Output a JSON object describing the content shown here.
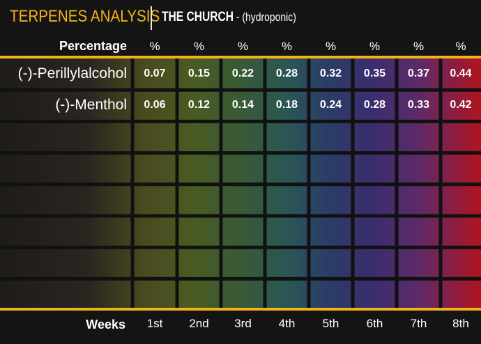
{
  "header": {
    "title": "TERPENES ANALYSIS",
    "subtitle": "THE CHURCH",
    "subtitle_note": " - (hydroponic)"
  },
  "chart_data": {
    "type": "table",
    "row_header": "Percentage",
    "column_header": "Weeks",
    "unit": "%",
    "categories": [
      "1st",
      "2nd",
      "3rd",
      "4th",
      "5th",
      "6th",
      "7th",
      "8th"
    ],
    "series": [
      {
        "name": "(-)-Perillylalcohol",
        "values": [
          0.07,
          0.15,
          0.22,
          0.28,
          0.32,
          0.35,
          0.37,
          0.44
        ]
      },
      {
        "name": "(-)-Menthol",
        "values": [
          0.06,
          0.12,
          0.14,
          0.18,
          0.24,
          0.28,
          0.33,
          0.42
        ]
      }
    ],
    "column_colors": [
      "#4f4f1e",
      "#4a571f",
      "#3e5c2a",
      "#2d5a4f",
      "#2c3c62",
      "#3a2c6a",
      "#5e2a66",
      "#8a1e32"
    ],
    "accent": "#f2b21c"
  }
}
